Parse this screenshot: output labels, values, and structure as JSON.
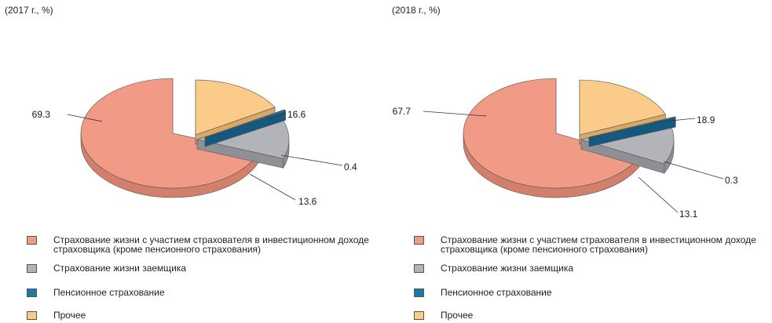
{
  "chart_data": [
    {
      "type": "pie",
      "title": "(2017 г., %)",
      "categories": [
        "Страхование жизни с участием страхователя в инвестиционном доходе страховщика (кроме пенсионного страхования)",
        "Страхование жизни заемщика",
        "Пенсионное страхование",
        "Прочее"
      ],
      "values": [
        69.3,
        13.6,
        0.4,
        16.6
      ],
      "data_labels": [
        "69.3",
        "13.6",
        "0.4",
        "16.6"
      ],
      "exploded": "Страхование жизни с участием страхователя в инвестиционном доходе страховщика (кроме пенсионного страхования)",
      "three_d": true,
      "legend_position": "bottom"
    },
    {
      "type": "pie",
      "title": "(2018 г., %)",
      "categories": [
        "Страхование жизни с участием страхователя в инвестиционном доходе страховщика (кроме пенсионного страхования)",
        "Страхование жизни заемщика",
        "Пенсионное страхование",
        "Прочее"
      ],
      "values": [
        67.7,
        13.1,
        0.3,
        18.9
      ],
      "data_labels": [
        "67.7",
        "13.1",
        "0.3",
        "18.9"
      ],
      "exploded": "Страхование жизни с участием страхователя в инвестиционном доходе страховщика (кроме пенсионного страхования)",
      "three_d": true,
      "legend_position": "bottom"
    }
  ],
  "colors": {
    "series": [
      "#f19b86",
      "#b3b3ba",
      "#1f79a8",
      "#fbcb8a"
    ],
    "sides": [
      "#d47f6c",
      "#8f8f96",
      "#155a7e",
      "#d9a867"
    ],
    "leader": "#333333"
  }
}
